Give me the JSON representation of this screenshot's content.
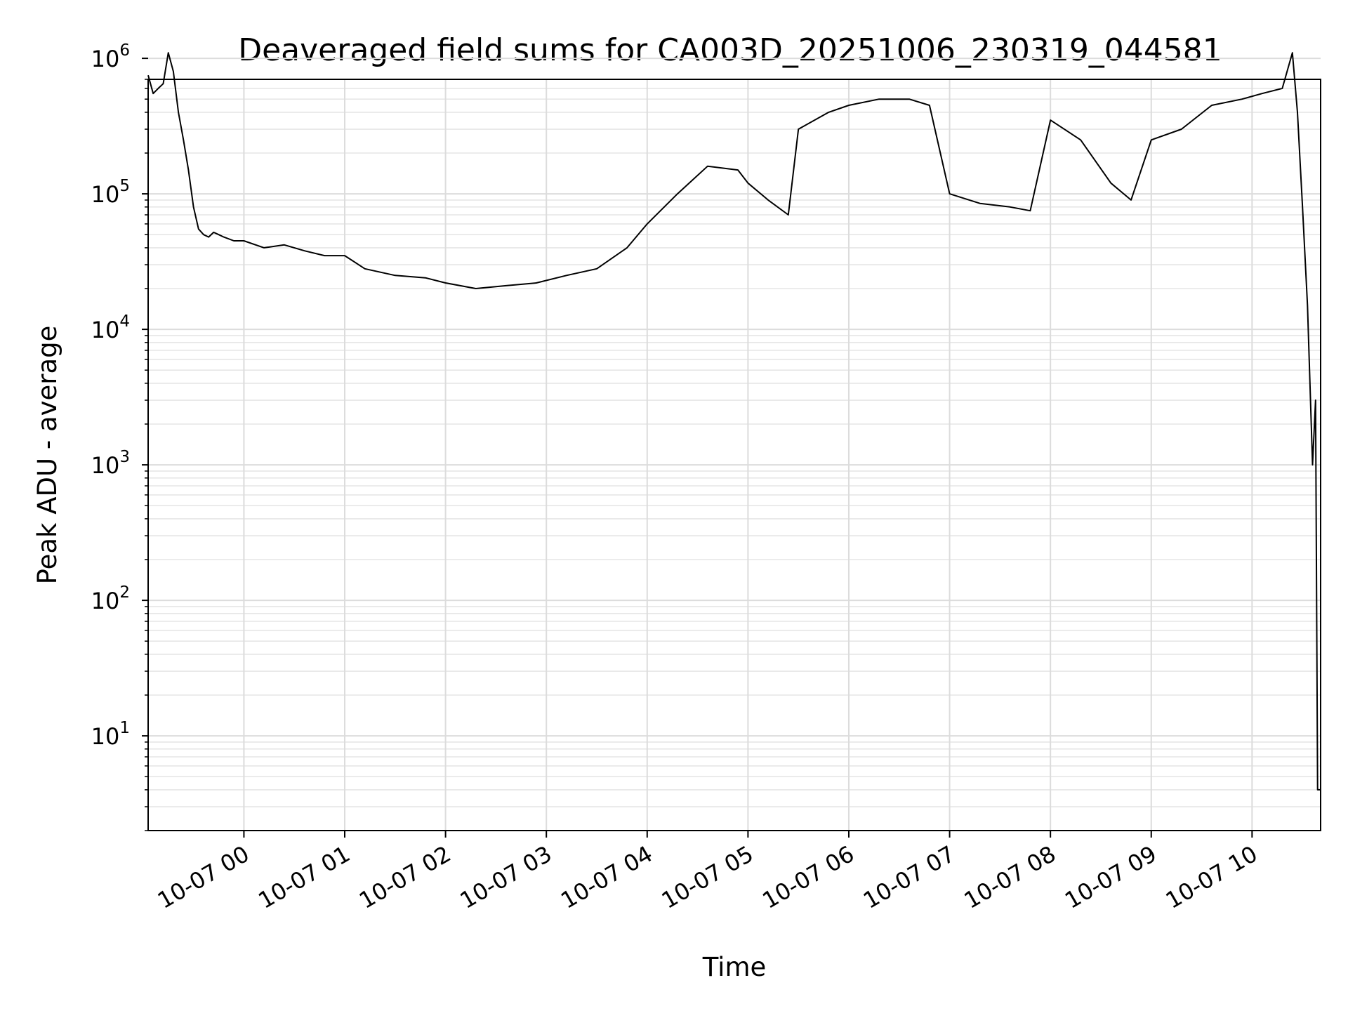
{
  "chart_data": {
    "type": "line",
    "title": "Deaveraged field sums for CA003D_20251006_230319_044581",
    "xlabel": "Time",
    "ylabel": "Peak ADU - average",
    "yscale": "log",
    "ylim": [
      2,
      700000
    ],
    "xlim": [
      -0.95,
      10.68
    ],
    "x_unit": "hours after 2025-10-07 00:00",
    "grid": true,
    "line_color": "#000000",
    "x_ticks": [
      {
        "x": 0,
        "label": "10-07 00"
      },
      {
        "x": 1,
        "label": "10-07 01"
      },
      {
        "x": 2,
        "label": "10-07 02"
      },
      {
        "x": 3,
        "label": "10-07 03"
      },
      {
        "x": 4,
        "label": "10-07 04"
      },
      {
        "x": 5,
        "label": "10-07 05"
      },
      {
        "x": 6,
        "label": "10-07 06"
      },
      {
        "x": 7,
        "label": "10-07 07"
      },
      {
        "x": 8,
        "label": "10-07 08"
      },
      {
        "x": 9,
        "label": "10-07 09"
      },
      {
        "x": 10,
        "label": "10-07 10"
      }
    ],
    "y_ticks": [
      {
        "value": 10,
        "base": "10",
        "exp": "1"
      },
      {
        "value": 100,
        "base": "10",
        "exp": "2"
      },
      {
        "value": 1000,
        "base": "10",
        "exp": "3"
      },
      {
        "value": 10000,
        "base": "10",
        "exp": "4"
      },
      {
        "value": 100000,
        "base": "10",
        "exp": "5"
      },
      {
        "value": 1000000,
        "base": "10",
        "exp": "6"
      }
    ],
    "series": [
      {
        "name": "Peak ADU - average",
        "x": [
          -0.95,
          -0.9,
          -0.85,
          -0.8,
          -0.75,
          -0.7,
          -0.65,
          -0.6,
          -0.55,
          -0.5,
          -0.45,
          -0.4,
          -0.35,
          -0.3,
          -0.25,
          -0.2,
          -0.1,
          0,
          0.2,
          0.4,
          0.6,
          0.8,
          1.0,
          1.2,
          1.5,
          1.8,
          2.0,
          2.3,
          2.6,
          2.9,
          3.2,
          3.5,
          3.8,
          4.0,
          4.3,
          4.6,
          4.9,
          5.0,
          5.2,
          5.4,
          5.5,
          5.8,
          6.0,
          6.3,
          6.6,
          6.8,
          7.0,
          7.3,
          7.6,
          7.8,
          8.0,
          8.3,
          8.6,
          8.8,
          9.0,
          9.3,
          9.6,
          9.9,
          10.1,
          10.3,
          10.4,
          10.45,
          10.5,
          10.55,
          10.6,
          10.63,
          10.65,
          10.68
        ],
        "values": [
          750000,
          550000,
          600000,
          650000,
          1100000,
          800000,
          400000,
          250000,
          150000,
          80000,
          55000,
          50000,
          48000,
          52000,
          50000,
          48000,
          45000,
          45000,
          40000,
          42000,
          38000,
          35000,
          35000,
          28000,
          25000,
          24000,
          22000,
          20000,
          21000,
          22000,
          25000,
          28000,
          40000,
          60000,
          100000,
          160000,
          150000,
          120000,
          90000,
          70000,
          300000,
          400000,
          450000,
          500000,
          500000,
          450000,
          100000,
          85000,
          80000,
          75000,
          350000,
          250000,
          120000,
          90000,
          250000,
          300000,
          450000,
          500000,
          550000,
          600000,
          1100000,
          400000,
          80000,
          15000,
          1000,
          3000,
          4,
          4
        ]
      }
    ]
  }
}
